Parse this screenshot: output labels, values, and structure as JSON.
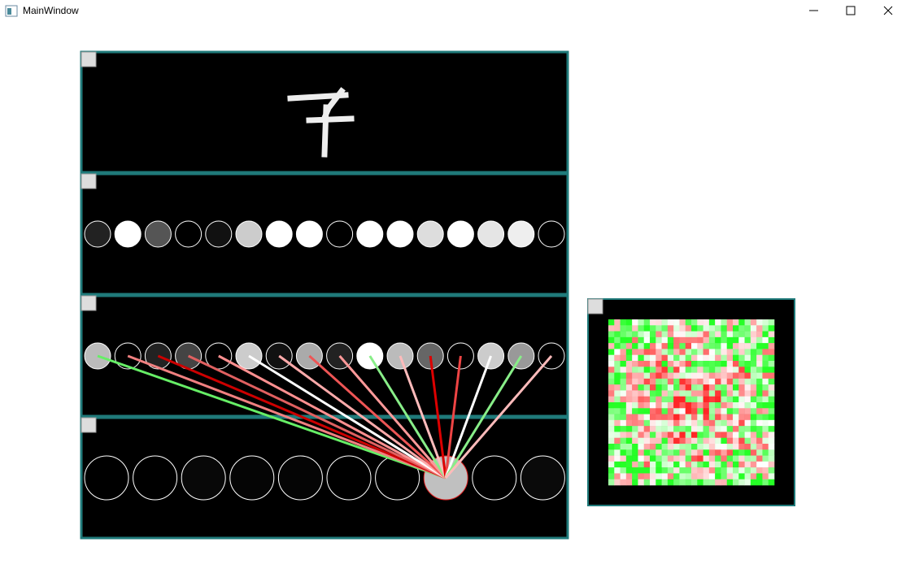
{
  "window": {
    "title": "MainWindow"
  }
}
